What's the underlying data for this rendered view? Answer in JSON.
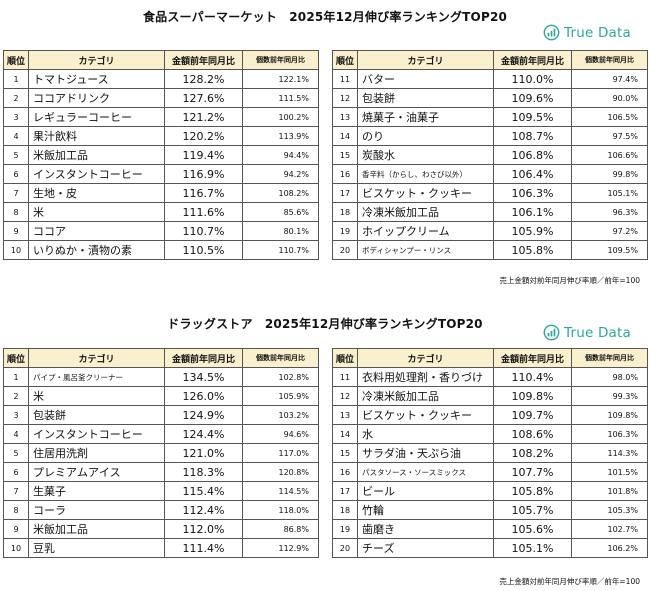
{
  "brand": {
    "name": "True Data",
    "color": "#2aa99a"
  },
  "header_color": "#fbf0cd",
  "headers": {
    "rank": "順位",
    "category": "カテゴリ",
    "amount": "金額前年同月比",
    "count": "個数前年同月比"
  },
  "sections": [
    {
      "title": "食品スーパーマーケット　2025年12月伸び率ランキングTOP20",
      "note": "売上金額対前年同月伸び率順／前年=100",
      "rows": [
        {
          "rank": "1",
          "category": "トマトジュース",
          "amount": "128.2%",
          "count": "122.1%"
        },
        {
          "rank": "2",
          "category": "ココアドリンク",
          "amount": "127.6%",
          "count": "111.5%"
        },
        {
          "rank": "3",
          "category": "レギュラーコーヒー",
          "amount": "121.2%",
          "count": "100.2%"
        },
        {
          "rank": "4",
          "category": "果汁飲料",
          "amount": "120.2%",
          "count": "113.9%"
        },
        {
          "rank": "5",
          "category": "米飯加工品",
          "amount": "119.4%",
          "count": "94.4%"
        },
        {
          "rank": "6",
          "category": "インスタントコーヒー",
          "amount": "116.9%",
          "count": "94.2%"
        },
        {
          "rank": "7",
          "category": "生地・皮",
          "amount": "116.7%",
          "count": "108.2%"
        },
        {
          "rank": "8",
          "category": "米",
          "amount": "111.6%",
          "count": "85.6%"
        },
        {
          "rank": "9",
          "category": "ココア",
          "amount": "110.7%",
          "count": "80.1%"
        },
        {
          "rank": "10",
          "category": "いりぬか・漬物の素",
          "amount": "110.5%",
          "count": "110.7%"
        },
        {
          "rank": "11",
          "category": "バター",
          "amount": "110.0%",
          "count": "97.4%"
        },
        {
          "rank": "12",
          "category": "包装餅",
          "amount": "109.6%",
          "count": "90.0%"
        },
        {
          "rank": "13",
          "category": "焼菓子・油菓子",
          "amount": "109.5%",
          "count": "106.5%"
        },
        {
          "rank": "14",
          "category": "のり",
          "amount": "108.7%",
          "count": "97.5%"
        },
        {
          "rank": "15",
          "category": "炭酸水",
          "amount": "106.8%",
          "count": "106.6%"
        },
        {
          "rank": "16",
          "category": "香辛料（からし、わさび以外）",
          "amount": "106.4%",
          "count": "99.8%",
          "small": true
        },
        {
          "rank": "17",
          "category": "ビスケット・クッキー",
          "amount": "106.3%",
          "count": "105.1%"
        },
        {
          "rank": "18",
          "category": "冷凍米飯加工品",
          "amount": "106.1%",
          "count": "96.3%"
        },
        {
          "rank": "19",
          "category": "ホイップクリーム",
          "amount": "105.9%",
          "count": "97.2%"
        },
        {
          "rank": "20",
          "category": "ボディシャンプー・リンス",
          "amount": "105.8%",
          "count": "109.5%",
          "small": true
        }
      ]
    },
    {
      "title": "ドラッグストア　2025年12月伸び率ランキングTOP20",
      "note": "売上金額対前年同月伸び率順／前年=100",
      "rows": [
        {
          "rank": "1",
          "category": "パイプ・風呂釜クリーナー",
          "amount": "134.5%",
          "count": "102.8%",
          "small": true
        },
        {
          "rank": "2",
          "category": "米",
          "amount": "126.0%",
          "count": "105.9%"
        },
        {
          "rank": "3",
          "category": "包装餅",
          "amount": "124.9%",
          "count": "103.2%"
        },
        {
          "rank": "4",
          "category": "インスタントコーヒー",
          "amount": "124.4%",
          "count": "94.6%"
        },
        {
          "rank": "5",
          "category": "住居用洗剤",
          "amount": "121.0%",
          "count": "117.0%"
        },
        {
          "rank": "6",
          "category": "プレミアムアイス",
          "amount": "118.3%",
          "count": "120.8%"
        },
        {
          "rank": "7",
          "category": "生菓子",
          "amount": "115.4%",
          "count": "114.5%"
        },
        {
          "rank": "8",
          "category": "コーラ",
          "amount": "112.4%",
          "count": "118.0%"
        },
        {
          "rank": "9",
          "category": "米飯加工品",
          "amount": "112.0%",
          "count": "86.8%"
        },
        {
          "rank": "10",
          "category": "豆乳",
          "amount": "111.4%",
          "count": "112.9%"
        },
        {
          "rank": "11",
          "category": "衣料用処理剤・香りづけ",
          "amount": "110.4%",
          "count": "98.0%"
        },
        {
          "rank": "12",
          "category": "冷凍米飯加工品",
          "amount": "109.8%",
          "count": "99.3%"
        },
        {
          "rank": "13",
          "category": "ビスケット・クッキー",
          "amount": "109.7%",
          "count": "109.8%"
        },
        {
          "rank": "14",
          "category": "水",
          "amount": "108.6%",
          "count": "106.3%"
        },
        {
          "rank": "15",
          "category": "サラダ油・天ぷら油",
          "amount": "108.2%",
          "count": "114.3%"
        },
        {
          "rank": "16",
          "category": "パスタソース・ソースミックス",
          "amount": "107.7%",
          "count": "101.5%",
          "small": true
        },
        {
          "rank": "17",
          "category": "ビール",
          "amount": "105.8%",
          "count": "101.8%"
        },
        {
          "rank": "18",
          "category": "竹輪",
          "amount": "105.7%",
          "count": "105.3%"
        },
        {
          "rank": "19",
          "category": "歯磨き",
          "amount": "105.6%",
          "count": "102.7%"
        },
        {
          "rank": "20",
          "category": "チーズ",
          "amount": "105.1%",
          "count": "106.2%"
        }
      ]
    }
  ]
}
